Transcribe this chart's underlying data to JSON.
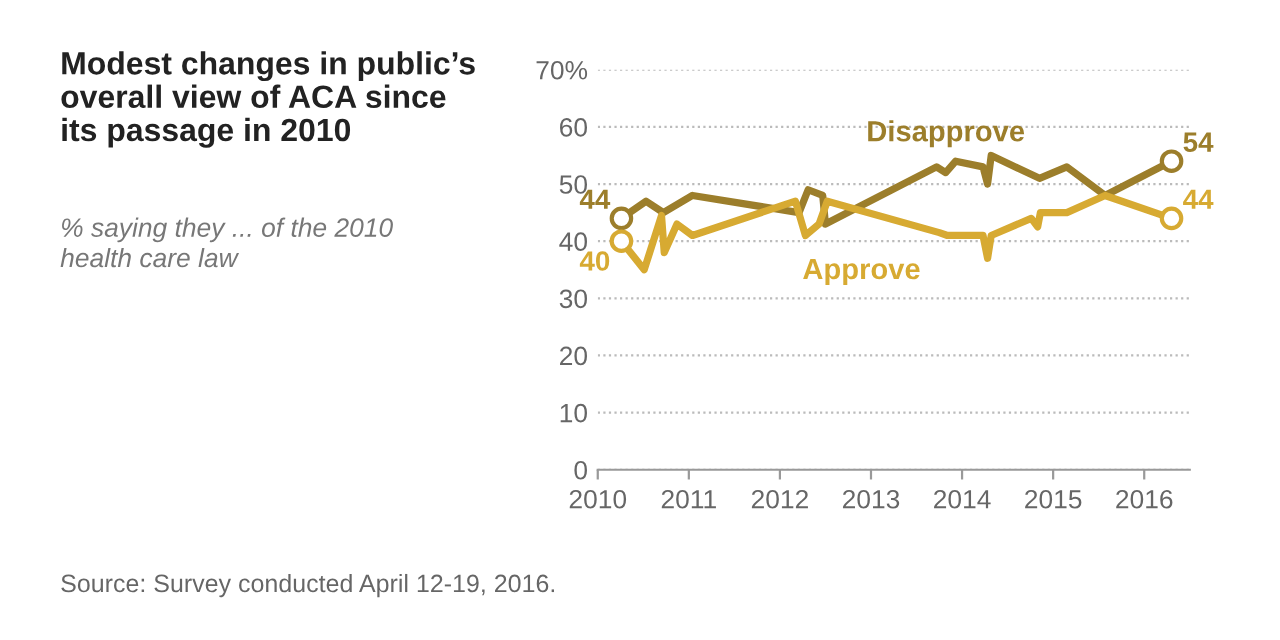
{
  "chart_data": {
    "type": "line",
    "title": "Modest changes in public’s overall view of ACA since its passage in 2010",
    "subtitle": "% saying they ... of the 2010 health care law",
    "series": [
      {
        "name": "Disapprove",
        "color": "#9c7e2b",
        "x": [
          2010.26,
          2010.53,
          2010.72,
          2011.04,
          2012.21,
          2012.31,
          2012.47,
          2012.5,
          2013.72,
          2013.82,
          2013.93,
          2014.23,
          2014.28,
          2014.32,
          2014.85,
          2015.15,
          2015.57,
          2016.3
        ],
        "values": [
          44,
          47,
          45,
          48,
          45,
          49,
          48,
          43,
          53,
          52,
          54,
          53,
          50,
          55,
          51,
          53,
          48,
          54
        ],
        "value_labels": [
          "44",
          null,
          null,
          null,
          null,
          null,
          null,
          null,
          null,
          null,
          null,
          null,
          null,
          null,
          null,
          null,
          null,
          "54"
        ]
      },
      {
        "name": "Approve",
        "color": "#d7aa32",
        "x": [
          2010.26,
          2010.51,
          2010.7,
          2010.73,
          2010.87,
          2011.04,
          2012.17,
          2012.28,
          2012.43,
          2012.52,
          2013.75,
          2013.84,
          2014.23,
          2014.28,
          2014.32,
          2014.76,
          2014.83,
          2014.86,
          2015.15,
          2015.57,
          2016.3
        ],
        "values": [
          40,
          35,
          44.5,
          38,
          43,
          41,
          47,
          41,
          43,
          47,
          41.5,
          41,
          41,
          37,
          41,
          44,
          42.5,
          45,
          45,
          48,
          44
        ],
        "value_labels": [
          "40",
          null,
          null,
          null,
          null,
          null,
          null,
          null,
          null,
          null,
          null,
          null,
          null,
          null,
          null,
          null,
          null,
          null,
          null,
          null,
          "44"
        ]
      }
    ],
    "xlim": [
      2010,
      2016.5
    ],
    "xticks": [
      2010,
      2011,
      2012,
      2013,
      2014,
      2015,
      2016
    ],
    "ylim": [
      0,
      70
    ],
    "yticks": [
      0,
      10,
      20,
      30,
      40,
      50,
      60,
      {
        "value": 70,
        "label": "70%"
      }
    ],
    "grid": "y",
    "annotations": [
      "Source: Survey conducted April 12-19, 2016."
    ]
  }
}
